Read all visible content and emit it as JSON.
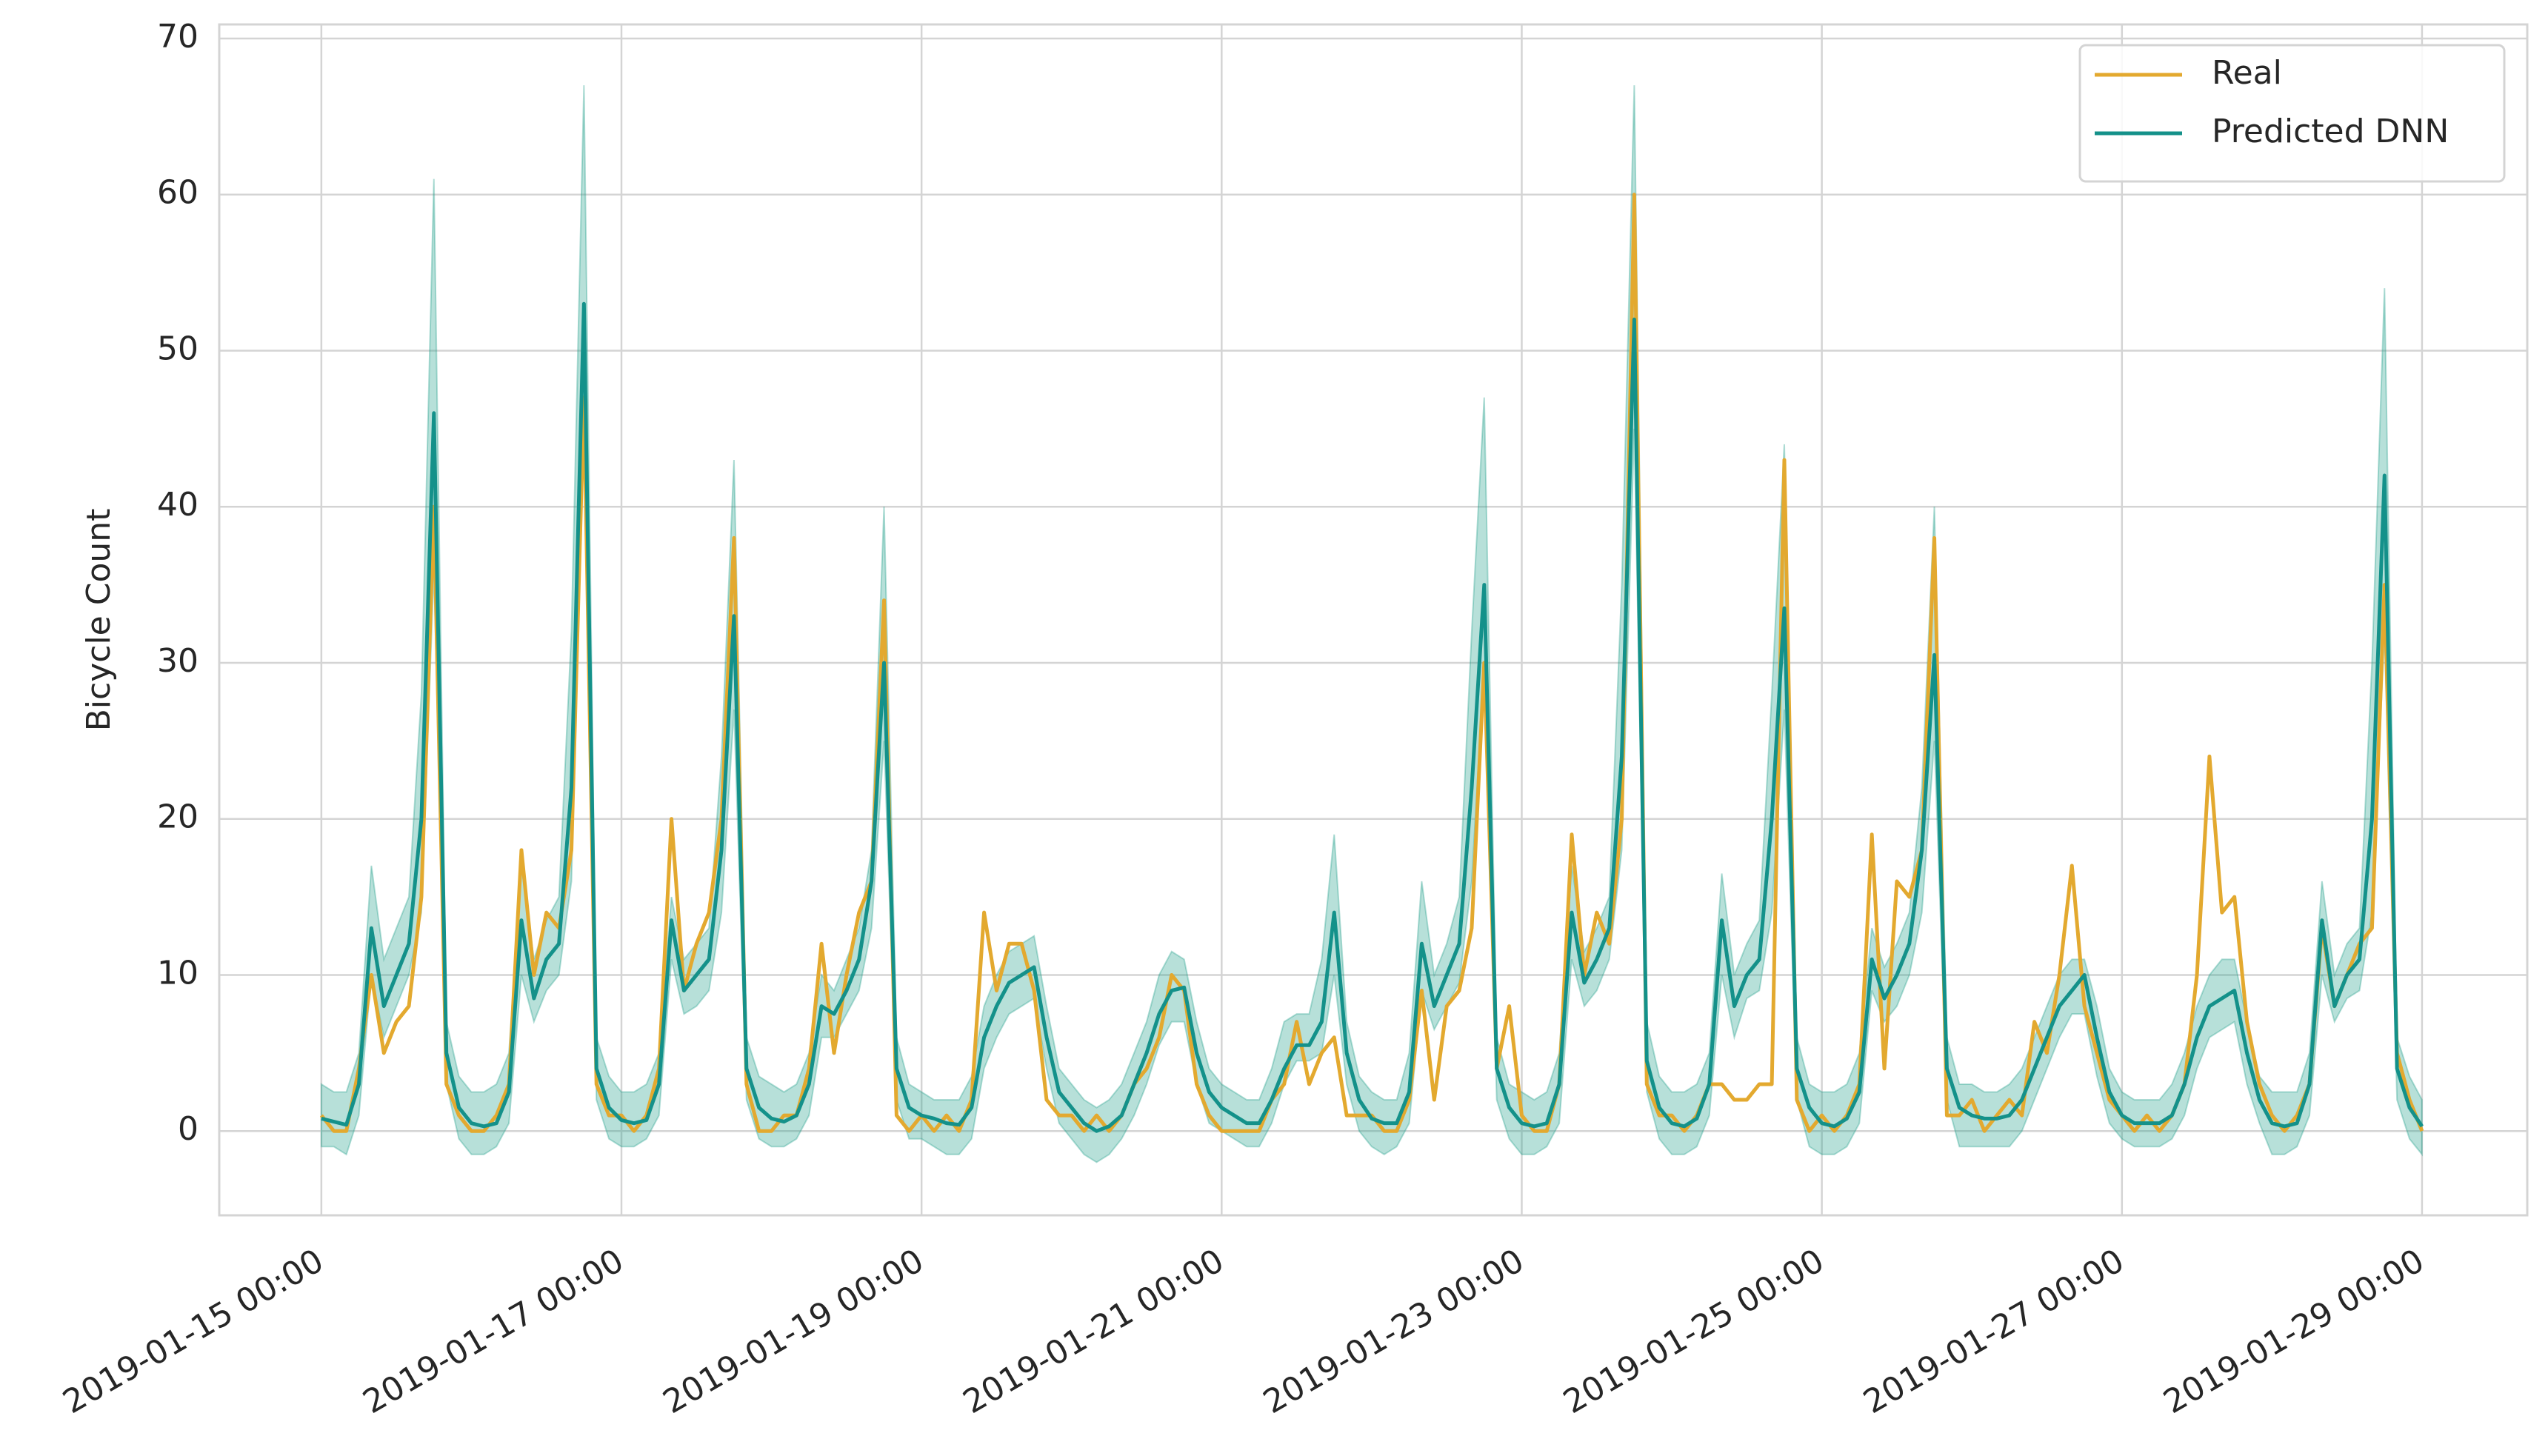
{
  "chart_data": {
    "type": "line",
    "ylabel": "Bicycle Count",
    "xlim": [
      "2019-01-14 07:40",
      "2019-01-29 16:50"
    ],
    "xticks": [
      "2019-01-15 00:00",
      "2019-01-17 00:00",
      "2019-01-19 00:00",
      "2019-01-21 00:00",
      "2019-01-23 00:00",
      "2019-01-25 00:00",
      "2019-01-27 00:00",
      "2019-01-29 00:00"
    ],
    "ylim": [
      -5.4,
      70.9
    ],
    "yticks": [
      0,
      10,
      20,
      30,
      40,
      50,
      60,
      70
    ],
    "grid": true,
    "legend": "upper right",
    "x": [
      "2019-01-15 00:00",
      "2019-01-15 02:00",
      "2019-01-15 04:00",
      "2019-01-15 06:00",
      "2019-01-15 08:00",
      "2019-01-15 10:00",
      "2019-01-15 12:00",
      "2019-01-15 14:00",
      "2019-01-15 16:00",
      "2019-01-15 18:00",
      "2019-01-15 20:00",
      "2019-01-15 22:00",
      "2019-01-16 00:00",
      "2019-01-16 02:00",
      "2019-01-16 04:00",
      "2019-01-16 06:00",
      "2019-01-16 08:00",
      "2019-01-16 10:00",
      "2019-01-16 12:00",
      "2019-01-16 14:00",
      "2019-01-16 16:00",
      "2019-01-16 18:00",
      "2019-01-16 20:00",
      "2019-01-16 22:00",
      "2019-01-17 00:00",
      "2019-01-17 02:00",
      "2019-01-17 04:00",
      "2019-01-17 06:00",
      "2019-01-17 08:00",
      "2019-01-17 10:00",
      "2019-01-17 12:00",
      "2019-01-17 14:00",
      "2019-01-17 16:00",
      "2019-01-17 18:00",
      "2019-01-17 20:00",
      "2019-01-17 22:00",
      "2019-01-18 00:00",
      "2019-01-18 02:00",
      "2019-01-18 04:00",
      "2019-01-18 06:00",
      "2019-01-18 08:00",
      "2019-01-18 10:00",
      "2019-01-18 12:00",
      "2019-01-18 14:00",
      "2019-01-18 16:00",
      "2019-01-18 18:00",
      "2019-01-18 20:00",
      "2019-01-18 22:00",
      "2019-01-19 00:00",
      "2019-01-19 02:00",
      "2019-01-19 04:00",
      "2019-01-19 06:00",
      "2019-01-19 08:00",
      "2019-01-19 10:00",
      "2019-01-19 12:00",
      "2019-01-19 14:00",
      "2019-01-19 16:00",
      "2019-01-19 18:00",
      "2019-01-19 20:00",
      "2019-01-19 22:00",
      "2019-01-20 00:00",
      "2019-01-20 02:00",
      "2019-01-20 04:00",
      "2019-01-20 06:00",
      "2019-01-20 08:00",
      "2019-01-20 10:00",
      "2019-01-20 12:00",
      "2019-01-20 14:00",
      "2019-01-20 16:00",
      "2019-01-20 18:00",
      "2019-01-20 20:00",
      "2019-01-20 22:00",
      "2019-01-21 00:00",
      "2019-01-21 02:00",
      "2019-01-21 04:00",
      "2019-01-21 06:00",
      "2019-01-21 08:00",
      "2019-01-21 10:00",
      "2019-01-21 12:00",
      "2019-01-21 14:00",
      "2019-01-21 16:00",
      "2019-01-21 18:00",
      "2019-01-21 20:00",
      "2019-01-21 22:00",
      "2019-01-22 00:00",
      "2019-01-22 02:00",
      "2019-01-22 04:00",
      "2019-01-22 06:00",
      "2019-01-22 08:00",
      "2019-01-22 10:00",
      "2019-01-22 12:00",
      "2019-01-22 14:00",
      "2019-01-22 16:00",
      "2019-01-22 18:00",
      "2019-01-22 20:00",
      "2019-01-22 22:00",
      "2019-01-23 00:00",
      "2019-01-23 02:00",
      "2019-01-23 04:00",
      "2019-01-23 06:00",
      "2019-01-23 08:00",
      "2019-01-23 10:00",
      "2019-01-23 12:00",
      "2019-01-23 14:00",
      "2019-01-23 16:00",
      "2019-01-23 18:00",
      "2019-01-23 20:00",
      "2019-01-23 22:00",
      "2019-01-24 00:00",
      "2019-01-24 02:00",
      "2019-01-24 04:00",
      "2019-01-24 06:00",
      "2019-01-24 08:00",
      "2019-01-24 10:00",
      "2019-01-24 12:00",
      "2019-01-24 14:00",
      "2019-01-24 16:00",
      "2019-01-24 18:00",
      "2019-01-24 20:00",
      "2019-01-24 22:00",
      "2019-01-25 00:00",
      "2019-01-25 02:00",
      "2019-01-25 04:00",
      "2019-01-25 06:00",
      "2019-01-25 08:00",
      "2019-01-25 10:00",
      "2019-01-25 12:00",
      "2019-01-25 14:00",
      "2019-01-25 16:00",
      "2019-01-25 18:00",
      "2019-01-25 20:00",
      "2019-01-25 22:00",
      "2019-01-26 00:00",
      "2019-01-26 02:00",
      "2019-01-26 04:00",
      "2019-01-26 06:00",
      "2019-01-26 08:00",
      "2019-01-26 10:00",
      "2019-01-26 12:00",
      "2019-01-26 14:00",
      "2019-01-26 16:00",
      "2019-01-26 18:00",
      "2019-01-26 20:00",
      "2019-01-26 22:00",
      "2019-01-27 00:00",
      "2019-01-27 02:00",
      "2019-01-27 04:00",
      "2019-01-27 06:00",
      "2019-01-27 08:00",
      "2019-01-27 10:00",
      "2019-01-27 12:00",
      "2019-01-27 14:00",
      "2019-01-27 16:00",
      "2019-01-27 18:00",
      "2019-01-27 20:00",
      "2019-01-27 22:00",
      "2019-01-28 00:00",
      "2019-01-28 02:00",
      "2019-01-28 04:00",
      "2019-01-28 06:00",
      "2019-01-28 08:00",
      "2019-01-28 10:00",
      "2019-01-28 12:00",
      "2019-01-28 14:00",
      "2019-01-28 16:00",
      "2019-01-28 18:00",
      "2019-01-28 20:00",
      "2019-01-28 22:00",
      "2019-01-29 00:00"
    ],
    "band": {
      "color": "#1f9e89",
      "upper": [
        3,
        2.5,
        2.5,
        5,
        17,
        11,
        13,
        15,
        28,
        61,
        7,
        3.5,
        2.5,
        2.5,
        3,
        5,
        17,
        11,
        13.5,
        15,
        32,
        67,
        6,
        3.5,
        2.5,
        2.5,
        3,
        5,
        15,
        11,
        12,
        13,
        24,
        43,
        6,
        3.5,
        3,
        2.5,
        3,
        5,
        10,
        9,
        11,
        13,
        18,
        40,
        6,
        3,
        2.5,
        2,
        2,
        2,
        3.5,
        8,
        10,
        11.5,
        12,
        12.5,
        8,
        4,
        3,
        2,
        1.5,
        2,
        3,
        5,
        7,
        10,
        11.5,
        11,
        7,
        4,
        3,
        2.5,
        2,
        2,
        4,
        7,
        7.5,
        7.5,
        11,
        19,
        7,
        3.5,
        2.5,
        2,
        2,
        5,
        16,
        10,
        12,
        15,
        32,
        47,
        6,
        3,
        2.5,
        2,
        2.5,
        5,
        17,
        11.5,
        13,
        15,
        35,
        67,
        7,
        3.5,
        2.5,
        2.5,
        3,
        5,
        16.5,
        10,
        12,
        13.5,
        28,
        44,
        6,
        3,
        2.5,
        2.5,
        3,
        5,
        13,
        10.5,
        12,
        14,
        22,
        40,
        6,
        3,
        3,
        2.5,
        2.5,
        3,
        4,
        6,
        8,
        10,
        11,
        11,
        8,
        4,
        2.5,
        2,
        2,
        2,
        3,
        5,
        8,
        10,
        11,
        11,
        7,
        3.5,
        2.5,
        2.5,
        2.5,
        5,
        16,
        10,
        12,
        13,
        30,
        54,
        6,
        3.5,
        2
      ],
      "lower": [
        -1,
        -1,
        -1.5,
        1,
        10,
        6,
        8,
        10,
        14,
        36,
        3,
        -0.5,
        -1.5,
        -1.5,
        -1,
        0.5,
        10,
        7,
        9,
        10,
        16,
        45,
        2,
        -0.5,
        -1,
        -1,
        -0.5,
        1,
        11,
        7.5,
        8,
        9,
        14,
        27,
        2,
        -0.5,
        -1,
        -1,
        -0.5,
        1,
        6,
        6,
        7.5,
        9,
        13,
        25,
        2,
        -0.5,
        -0.5,
        -1,
        -1.5,
        -1.5,
        -0.5,
        4,
        6,
        7.5,
        8,
        8.5,
        4,
        0.5,
        -0.5,
        -1.5,
        -2,
        -1.5,
        -0.5,
        1,
        3,
        5.5,
        7,
        7,
        3,
        0.5,
        0,
        -0.5,
        -1,
        -1,
        0.5,
        3,
        4.5,
        4.5,
        5,
        10,
        3,
        0,
        -1,
        -1.5,
        -1,
        0.5,
        9,
        6.5,
        8,
        9.5,
        16,
        30,
        2,
        -0.5,
        -1.5,
        -1.5,
        -1,
        0.5,
        11,
        8,
        9,
        11,
        18,
        45,
        2.5,
        -0.5,
        -1.5,
        -1.5,
        -1,
        1,
        10,
        6,
        8.5,
        9,
        14,
        27,
        2,
        -1,
        -1.5,
        -1.5,
        -1,
        0.5,
        9,
        7,
        8,
        10,
        14,
        25,
        2,
        -1,
        -1,
        -1,
        -1,
        -1,
        0,
        2,
        4,
        6,
        7.5,
        7.5,
        3.5,
        0.5,
        -0.5,
        -1,
        -1,
        -1,
        -0.5,
        1,
        4,
        6,
        6.5,
        7,
        3,
        0.5,
        -1.5,
        -1.5,
        -1,
        1,
        10,
        7,
        8.5,
        9,
        14,
        32,
        2,
        -0.5,
        -1.5
      ]
    },
    "series": [
      {
        "name": "Real",
        "color": "#e3a92f",
        "values": [
          1,
          0,
          0,
          4,
          10,
          5,
          7,
          8,
          15,
          40,
          3,
          1,
          0,
          0,
          1,
          3,
          18,
          10,
          14,
          13,
          18,
          47,
          3,
          1,
          1,
          0,
          1,
          4,
          20,
          9,
          12,
          14,
          20,
          38,
          3,
          0,
          0,
          1,
          1,
          4,
          12,
          5,
          10,
          14,
          16,
          34,
          1,
          0,
          1,
          0,
          1,
          0,
          2,
          14,
          9,
          12,
          12,
          9,
          2,
          1,
          1,
          0,
          1,
          0,
          1,
          3,
          4,
          6,
          10,
          9,
          3,
          1,
          0,
          0,
          0,
          0,
          2,
          3,
          7,
          3,
          5,
          6,
          1,
          1,
          1,
          0,
          0,
          2,
          9,
          2,
          8,
          9,
          13,
          30,
          4,
          8,
          1,
          0,
          0,
          3,
          19,
          10,
          14,
          12,
          20,
          60,
          3,
          1,
          1,
          0,
          1,
          3,
          3,
          2,
          2,
          3,
          3,
          43,
          2,
          0,
          1,
          0,
          1,
          3,
          19,
          4,
          16,
          15,
          18,
          38,
          1,
          1,
          2,
          0,
          1,
          2,
          1,
          7,
          5,
          10,
          17,
          8,
          5,
          2,
          1,
          0,
          1,
          0,
          1,
          3,
          10,
          24,
          14,
          15,
          7,
          3,
          1,
          0,
          1,
          3,
          13,
          8,
          10,
          12,
          13,
          35,
          5,
          2,
          0
        ]
      },
      {
        "name": "Predicted DNN",
        "color": "#14918a",
        "values": [
          0.8,
          0.6,
          0.4,
          3,
          13,
          8,
          10,
          12,
          20,
          46,
          5,
          1.5,
          0.5,
          0.3,
          0.5,
          2.5,
          13.5,
          8.5,
          11,
          12,
          22,
          53,
          4,
          1.5,
          0.7,
          0.5,
          0.7,
          3,
          13.5,
          9,
          10,
          11,
          18,
          33,
          4,
          1.5,
          0.8,
          0.6,
          1,
          3,
          8,
          7.5,
          9,
          11,
          16,
          30,
          4,
          1.5,
          1,
          0.8,
          0.5,
          0.4,
          1.5,
          6,
          8,
          9.5,
          10,
          10.5,
          6,
          2.5,
          1.5,
          0.5,
          0,
          0.3,
          1,
          3,
          5,
          7.5,
          9,
          9.2,
          5,
          2.5,
          1.5,
          1,
          0.5,
          0.5,
          2,
          4,
          5.5,
          5.5,
          7,
          14,
          5,
          2,
          0.8,
          0.5,
          0.5,
          2.5,
          12,
          8,
          10,
          12,
          22,
          35,
          4,
          1.5,
          0.5,
          0.3,
          0.5,
          3,
          14,
          9.5,
          11,
          13,
          24,
          52,
          4.5,
          1.5,
          0.5,
          0.3,
          0.8,
          3,
          13.5,
          8,
          10,
          11,
          20,
          33.5,
          4,
          1.5,
          0.5,
          0.3,
          0.8,
          2.5,
          11,
          8.5,
          10,
          12,
          18,
          30.5,
          4,
          1.5,
          1,
          0.8,
          0.8,
          1,
          2,
          4,
          6,
          8,
          9,
          10,
          6,
          2.5,
          1,
          0.5,
          0.5,
          0.5,
          1,
          3,
          6,
          8,
          8.5,
          9,
          5,
          2,
          0.5,
          0.3,
          0.5,
          3,
          13.5,
          8,
          10,
          11,
          20,
          42,
          4,
          1.5,
          0.3
        ]
      }
    ]
  }
}
